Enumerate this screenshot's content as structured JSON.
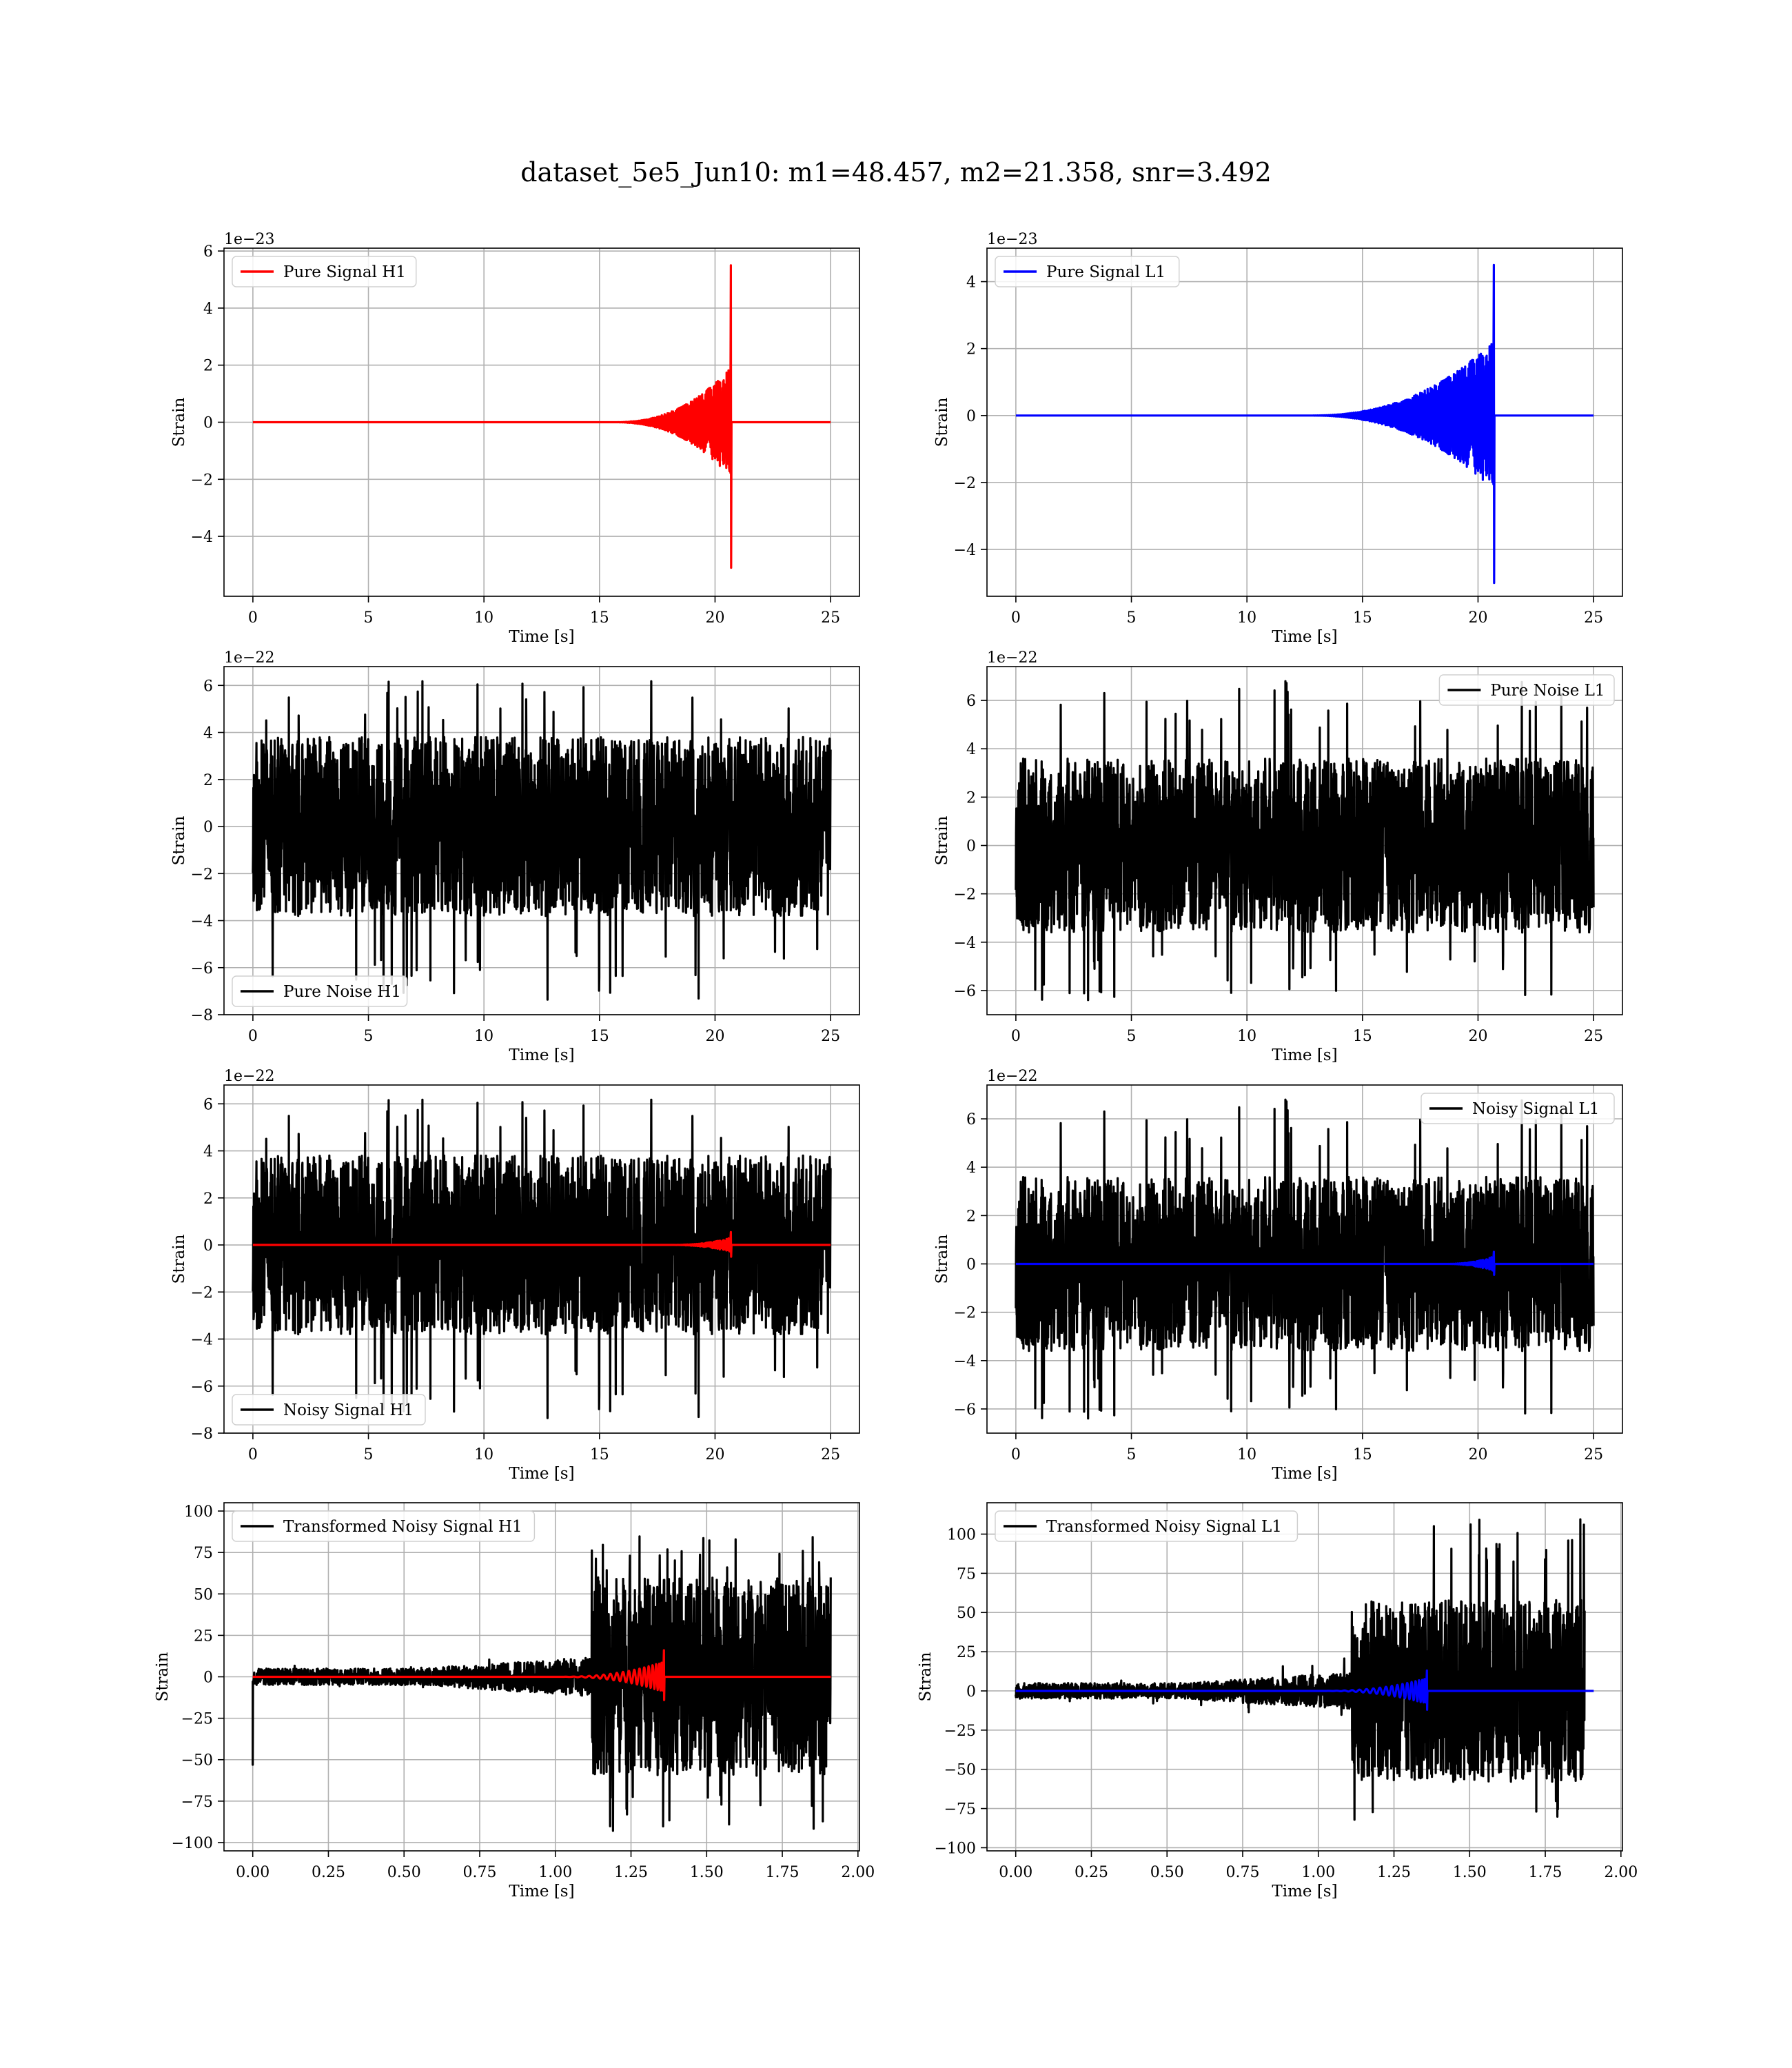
{
  "figure_title": "dataset_5e5_Jun10: m1=48.457, m2=21.358, snr=3.492",
  "chart_data": [
    {
      "type": "line",
      "title": "",
      "xlabel": "Time [s]",
      "ylabel": "Strain",
      "xlim": [
        -1.25,
        26.25
      ],
      "ylim": [
        -6.1,
        6.1
      ],
      "xticks": [
        0,
        5,
        10,
        15,
        20,
        25
      ],
      "xtick_labels": [
        "0",
        "5",
        "10",
        "15",
        "20",
        "25"
      ],
      "yticks": [
        -4,
        -2,
        0,
        2,
        4,
        6
      ],
      "ytick_labels": [
        "−4",
        "−2",
        "0",
        "2",
        "4",
        "6"
      ],
      "offset_label": "1e−23",
      "grid": true,
      "legend": "upper left",
      "series": [
        {
          "name": "Pure Signal H1",
          "color": "#ff0000",
          "kind": "chirp",
          "t0": 0,
          "t1": 25,
          "tc": 20.7,
          "amp": 5.5,
          "ramp_start": 15.5,
          "ramp_end": 20.65,
          "ramp_amp": 1.9,
          "neg_spike": -5.1
        }
      ]
    },
    {
      "type": "line",
      "title": "",
      "xlabel": "Time [s]",
      "ylabel": "Strain",
      "xlim": [
        -1.25,
        26.25
      ],
      "ylim": [
        -5.4,
        5.0
      ],
      "xticks": [
        0,
        5,
        10,
        15,
        20,
        25
      ],
      "xtick_labels": [
        "0",
        "5",
        "10",
        "15",
        "20",
        "25"
      ],
      "yticks": [
        -4,
        -2,
        0,
        2,
        4
      ],
      "ytick_labels": [
        "−4",
        "−2",
        "0",
        "2",
        "4"
      ],
      "offset_label": "1e−23",
      "grid": true,
      "legend": "upper left",
      "series": [
        {
          "name": "Pure Signal L1",
          "color": "#0000ff",
          "kind": "chirp",
          "t0": 0,
          "t1": 25,
          "tc": 20.7,
          "amp": 4.5,
          "ramp_start": 12.5,
          "ramp_end": 20.65,
          "ramp_amp": 2.2,
          "neg_spike": -5.0
        }
      ]
    },
    {
      "type": "line",
      "title": "",
      "xlabel": "Time [s]",
      "ylabel": "Strain",
      "xlim": [
        -1.25,
        26.25
      ],
      "ylim": [
        -8.0,
        6.8
      ],
      "xticks": [
        0,
        5,
        10,
        15,
        20,
        25
      ],
      "xtick_labels": [
        "0",
        "5",
        "10",
        "15",
        "20",
        "25"
      ],
      "yticks": [
        -8,
        -6,
        -4,
        -2,
        0,
        2,
        4,
        6
      ],
      "ytick_labels": [
        "−8",
        "−6",
        "−4",
        "−2",
        "0",
        "2",
        "4",
        "6"
      ],
      "offset_label": "1e−22",
      "grid": true,
      "legend": "lower left",
      "series": [
        {
          "name": "Pure Noise H1",
          "color": "#000000",
          "kind": "noise",
          "t0": 0,
          "t1": 25,
          "band": 3.8,
          "peak": 6.2,
          "trough": -7.4,
          "seed": 11
        }
      ]
    },
    {
      "type": "line",
      "title": "",
      "xlabel": "Time [s]",
      "ylabel": "Strain",
      "xlim": [
        -1.25,
        26.25
      ],
      "ylim": [
        -7.0,
        7.4
      ],
      "xticks": [
        0,
        5,
        10,
        15,
        20,
        25
      ],
      "xtick_labels": [
        "0",
        "5",
        "10",
        "15",
        "20",
        "25"
      ],
      "yticks": [
        -6,
        -4,
        -2,
        0,
        2,
        4,
        6
      ],
      "ytick_labels": [
        "−6",
        "−4",
        "−2",
        "0",
        "2",
        "4",
        "6"
      ],
      "offset_label": "1e−22",
      "grid": true,
      "legend": "upper right",
      "series": [
        {
          "name": "Pure Noise L1",
          "color": "#000000",
          "kind": "noise",
          "t0": 0,
          "t1": 25,
          "band": 3.6,
          "peak": 6.8,
          "trough": -6.4,
          "seed": 23
        }
      ]
    },
    {
      "type": "line",
      "title": "",
      "xlabel": "Time [s]",
      "ylabel": "Strain",
      "xlim": [
        -1.25,
        26.25
      ],
      "ylim": [
        -8.0,
        6.8
      ],
      "xticks": [
        0,
        5,
        10,
        15,
        20,
        25
      ],
      "xtick_labels": [
        "0",
        "5",
        "10",
        "15",
        "20",
        "25"
      ],
      "yticks": [
        -8,
        -6,
        -4,
        -2,
        0,
        2,
        4,
        6
      ],
      "ytick_labels": [
        "−8",
        "−6",
        "−4",
        "−2",
        "0",
        "2",
        "4",
        "6"
      ],
      "offset_label": "1e−22",
      "grid": true,
      "legend": "lower left",
      "series": [
        {
          "name": "Noisy Signal H1",
          "color": "#000000",
          "kind": "noise",
          "t0": 0,
          "t1": 25,
          "band": 3.8,
          "peak": 6.2,
          "trough": -7.4,
          "seed": 11
        },
        {
          "name": "",
          "color": "#ff0000",
          "kind": "chirp",
          "t0": 0,
          "t1": 25,
          "tc": 20.7,
          "amp": 0.55,
          "ramp_start": 18.0,
          "ramp_end": 20.65,
          "ramp_amp": 0.3,
          "neg_spike": -0.5
        }
      ]
    },
    {
      "type": "line",
      "title": "",
      "xlabel": "Time [s]",
      "ylabel": "Strain",
      "xlim": [
        -1.25,
        26.25
      ],
      "ylim": [
        -7.0,
        7.4
      ],
      "xticks": [
        0,
        5,
        10,
        15,
        20,
        25
      ],
      "xtick_labels": [
        "0",
        "5",
        "10",
        "15",
        "20",
        "25"
      ],
      "yticks": [
        -6,
        -4,
        -2,
        0,
        2,
        4,
        6
      ],
      "ytick_labels": [
        "−6",
        "−4",
        "−2",
        "0",
        "2",
        "4",
        "6"
      ],
      "offset_label": "1e−22",
      "grid": true,
      "legend": "upper right",
      "series": [
        {
          "name": "Noisy Signal L1",
          "color": "#000000",
          "kind": "noise",
          "t0": 0,
          "t1": 25,
          "band": 3.6,
          "peak": 6.8,
          "trough": -6.4,
          "seed": 23
        },
        {
          "name": "",
          "color": "#0000ff",
          "kind": "chirp",
          "t0": 0,
          "t1": 25,
          "tc": 20.7,
          "amp": 0.5,
          "ramp_start": 18.5,
          "ramp_end": 20.65,
          "ramp_amp": 0.3,
          "neg_spike": -0.45
        }
      ]
    },
    {
      "type": "line",
      "title": "",
      "xlabel": "Time [s]",
      "ylabel": "Strain",
      "xlim": [
        -0.095,
        2.005
      ],
      "ylim": [
        -105,
        105
      ],
      "xticks": [
        0,
        0.25,
        0.5,
        0.75,
        1.0,
        1.25,
        1.5,
        1.75,
        2.0
      ],
      "xtick_labels": [
        "0.00",
        "0.25",
        "0.50",
        "0.75",
        "1.00",
        "1.25",
        "1.50",
        "1.75",
        "2.00"
      ],
      "yticks": [
        -100,
        -75,
        -50,
        -25,
        0,
        25,
        50,
        75,
        100
      ],
      "ytick_labels": [
        "−100",
        "−75",
        "−50",
        "−25",
        "0",
        "25",
        "50",
        "75",
        "100"
      ],
      "offset_label": "",
      "grid": true,
      "legend": "upper left",
      "series": [
        {
          "name": "Transformed Noisy Signal H1",
          "color": "#000000",
          "kind": "whitened",
          "t0": 0,
          "t1": 1.91,
          "jump": 1.12,
          "low": 5,
          "mid": 12,
          "high": 60,
          "peak": 85,
          "trough": -95,
          "seed": 37,
          "start_spike": -53
        },
        {
          "name": "",
          "color": "#ff0000",
          "kind": "chirp",
          "t0": 0,
          "t1": 1.91,
          "tc": 1.36,
          "amp": 16,
          "ramp_start": 1.0,
          "ramp_end": 1.355,
          "ramp_amp": 9,
          "neg_spike": -14
        }
      ]
    },
    {
      "type": "line",
      "title": "",
      "xlabel": "Time [s]",
      "ylabel": "Strain",
      "xlim": [
        -0.095,
        2.005
      ],
      "ylim": [
        -102,
        120
      ],
      "xticks": [
        0,
        0.25,
        0.5,
        0.75,
        1.0,
        1.25,
        1.5,
        1.75,
        2.0
      ],
      "xtick_labels": [
        "0.00",
        "0.25",
        "0.50",
        "0.75",
        "1.00",
        "1.25",
        "1.50",
        "1.75",
        "2.00"
      ],
      "yticks": [
        -100,
        -75,
        -50,
        -25,
        0,
        25,
        50,
        75,
        100
      ],
      "ytick_labels": [
        "−100",
        "−75",
        "−50",
        "−25",
        "0",
        "25",
        "50",
        "75",
        "100"
      ],
      "offset_label": "",
      "grid": true,
      "legend": "upper left",
      "series": [
        {
          "name": "Transformed Noisy Signal L1",
          "color": "#000000",
          "kind": "whitened",
          "t0": 0,
          "t1": 1.88,
          "jump": 1.11,
          "low": 5,
          "mid": 12,
          "high": 58,
          "peak": 110,
          "trough": -92,
          "seed": 53,
          "start_spike": 0
        },
        {
          "name": "",
          "color": "#0000ff",
          "kind": "chirp",
          "t0": 0,
          "t1": 1.91,
          "tc": 1.36,
          "amp": 13,
          "ramp_start": 1.0,
          "ramp_end": 1.355,
          "ramp_amp": 8,
          "neg_spike": -12
        }
      ]
    }
  ]
}
